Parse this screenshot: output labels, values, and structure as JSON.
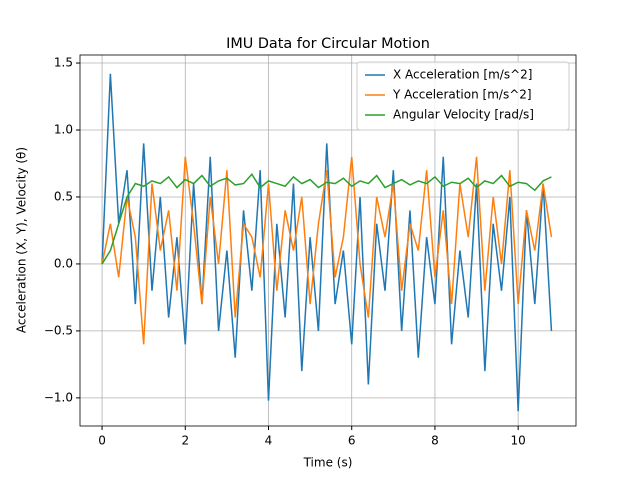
{
  "chart_data": {
    "type": "line",
    "title": "IMU Data for Circular Motion",
    "x_label": "Time (s)",
    "y_label": "Acceleration (X, Y), Velocity (θ)",
    "x": [
      0,
      0.2,
      0.4,
      0.6,
      0.8,
      1,
      1.2,
      1.4,
      1.6,
      1.8,
      2,
      2.2,
      2.4,
      2.6,
      2.8,
      3,
      3.2,
      3.4,
      3.6,
      3.8,
      4,
      4.2,
      4.4,
      4.6,
      4.8,
      5,
      5.2,
      5.4,
      5.6,
      5.8,
      6,
      6.2,
      6.4,
      6.6,
      6.8,
      7,
      7.2,
      7.4,
      7.6,
      7.8,
      8,
      8.2,
      8.4,
      8.6,
      8.8,
      9,
      9.2,
      9.4,
      9.6,
      9.8,
      10,
      10.2,
      10.4,
      10.6,
      10.8
    ],
    "series": [
      {
        "name": "X Acceleration [m/s^2]",
        "color": "#1f77b4",
        "values": [
          0,
          1.42,
          0.3,
          0.7,
          -0.3,
          0.9,
          -0.2,
          0.5,
          -0.4,
          0.2,
          -0.6,
          0.6,
          -0.3,
          0.8,
          -0.5,
          0.1,
          -0.7,
          0.4,
          -0.2,
          0.7,
          -1.02,
          0.3,
          -0.4,
          0.6,
          -0.8,
          0.2,
          -0.5,
          0.9,
          -0.3,
          0.1,
          -0.6,
          0.5,
          -0.9,
          0.3,
          -0.2,
          0.7,
          -0.5,
          0.4,
          -0.7,
          0.2,
          -0.3,
          0.8,
          -0.6,
          0.1,
          -0.4,
          0.6,
          -0.8,
          0.3,
          -0.2,
          0.5,
          -1.1,
          0.4,
          -0.3,
          0.6,
          -0.5
        ]
      },
      {
        "name": "Y Acceleration [m/s^2]",
        "color": "#ff7f0e",
        "values": [
          0,
          0.3,
          -0.1,
          0.5,
          0.2,
          -0.6,
          0.6,
          0.1,
          0.4,
          -0.2,
          0.8,
          0.3,
          -0.3,
          0.5,
          0.0,
          0.7,
          -0.4,
          0.3,
          0.2,
          -0.1,
          0.6,
          -0.2,
          0.4,
          0.1,
          0.5,
          -0.3,
          0.3,
          0.7,
          -0.1,
          0.2,
          0.8,
          0.0,
          -0.4,
          0.5,
          0.2,
          0.6,
          -0.2,
          0.3,
          0.1,
          0.7,
          -0.1,
          0.4,
          -0.3,
          0.6,
          0.2,
          0.8,
          -0.2,
          0.5,
          0.0,
          0.7,
          -0.3,
          0.4,
          0.1,
          0.6,
          0.2
        ]
      },
      {
        "name": "Angular Velocity [rad/s]",
        "color": "#2ca02c",
        "values": [
          0,
          0.1,
          0.3,
          0.5,
          0.6,
          0.58,
          0.62,
          0.6,
          0.65,
          0.57,
          0.63,
          0.6,
          0.66,
          0.58,
          0.62,
          0.64,
          0.59,
          0.6,
          0.67,
          0.57,
          0.62,
          0.6,
          0.58,
          0.65,
          0.6,
          0.63,
          0.57,
          0.61,
          0.6,
          0.64,
          0.58,
          0.62,
          0.6,
          0.66,
          0.57,
          0.6,
          0.63,
          0.59,
          0.62,
          0.6,
          0.65,
          0.58,
          0.61,
          0.6,
          0.64,
          0.57,
          0.62,
          0.6,
          0.66,
          0.58,
          0.61,
          0.6,
          0.55,
          0.62,
          0.65
        ]
      }
    ],
    "xlim": [
      -0.53,
      11.39
    ],
    "ylim": [
      -1.21,
      1.56
    ],
    "xticks": [
      0,
      2,
      4,
      6,
      8,
      10
    ],
    "yticks": [
      {
        "value": -1.0,
        "label": "−1.0"
      },
      {
        "value": -0.5,
        "label": "−0.5"
      },
      {
        "value": 0.0,
        "label": "0.0"
      },
      {
        "value": 0.5,
        "label": "0.5"
      },
      {
        "value": 1.0,
        "label": "1.0"
      },
      {
        "value": 1.5,
        "label": "1.5"
      }
    ],
    "grid": true,
    "legend": "upper right"
  }
}
